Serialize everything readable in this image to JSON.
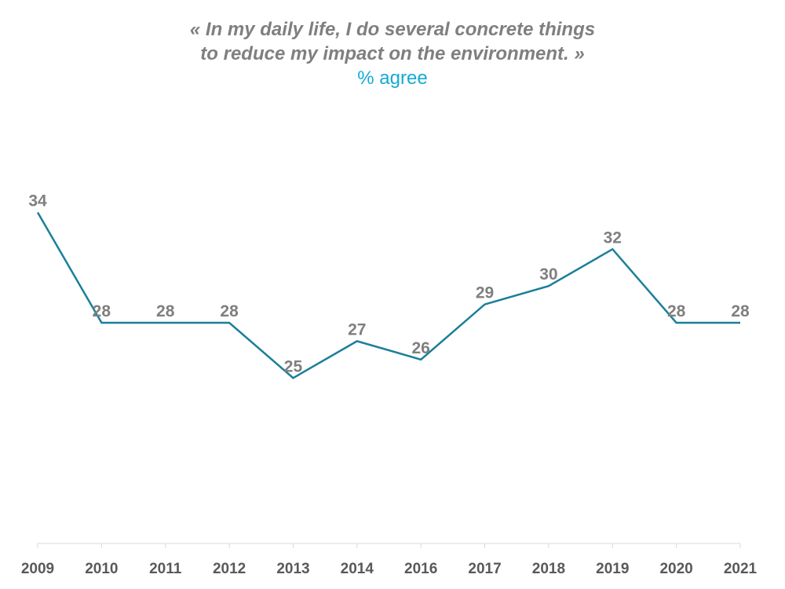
{
  "chart_data": {
    "type": "line",
    "title_lines": [
      "« In my daily life, I do several concrete things",
      "to reduce my impact on the environment. »"
    ],
    "subtitle": "% agree",
    "categories": [
      "2009",
      "2010",
      "2011",
      "2012",
      "2013",
      "2014",
      "2016",
      "2017",
      "2018",
      "2019",
      "2020",
      "2021"
    ],
    "series": [
      {
        "name": "% agree",
        "values": [
          34,
          28,
          28,
          28,
          25,
          27,
          26,
          29,
          30,
          32,
          28,
          28
        ]
      }
    ],
    "xlabel": "",
    "ylabel": "",
    "ylim": [
      16,
      40
    ],
    "grid": false,
    "legend": "none",
    "colors": {
      "line": "#1b7f99",
      "axis": "#d9d9d9",
      "title": "#7f7f7f",
      "subtitle": "#16a9d4",
      "labels": "#7f7f7f",
      "ticks": "#595959"
    }
  }
}
